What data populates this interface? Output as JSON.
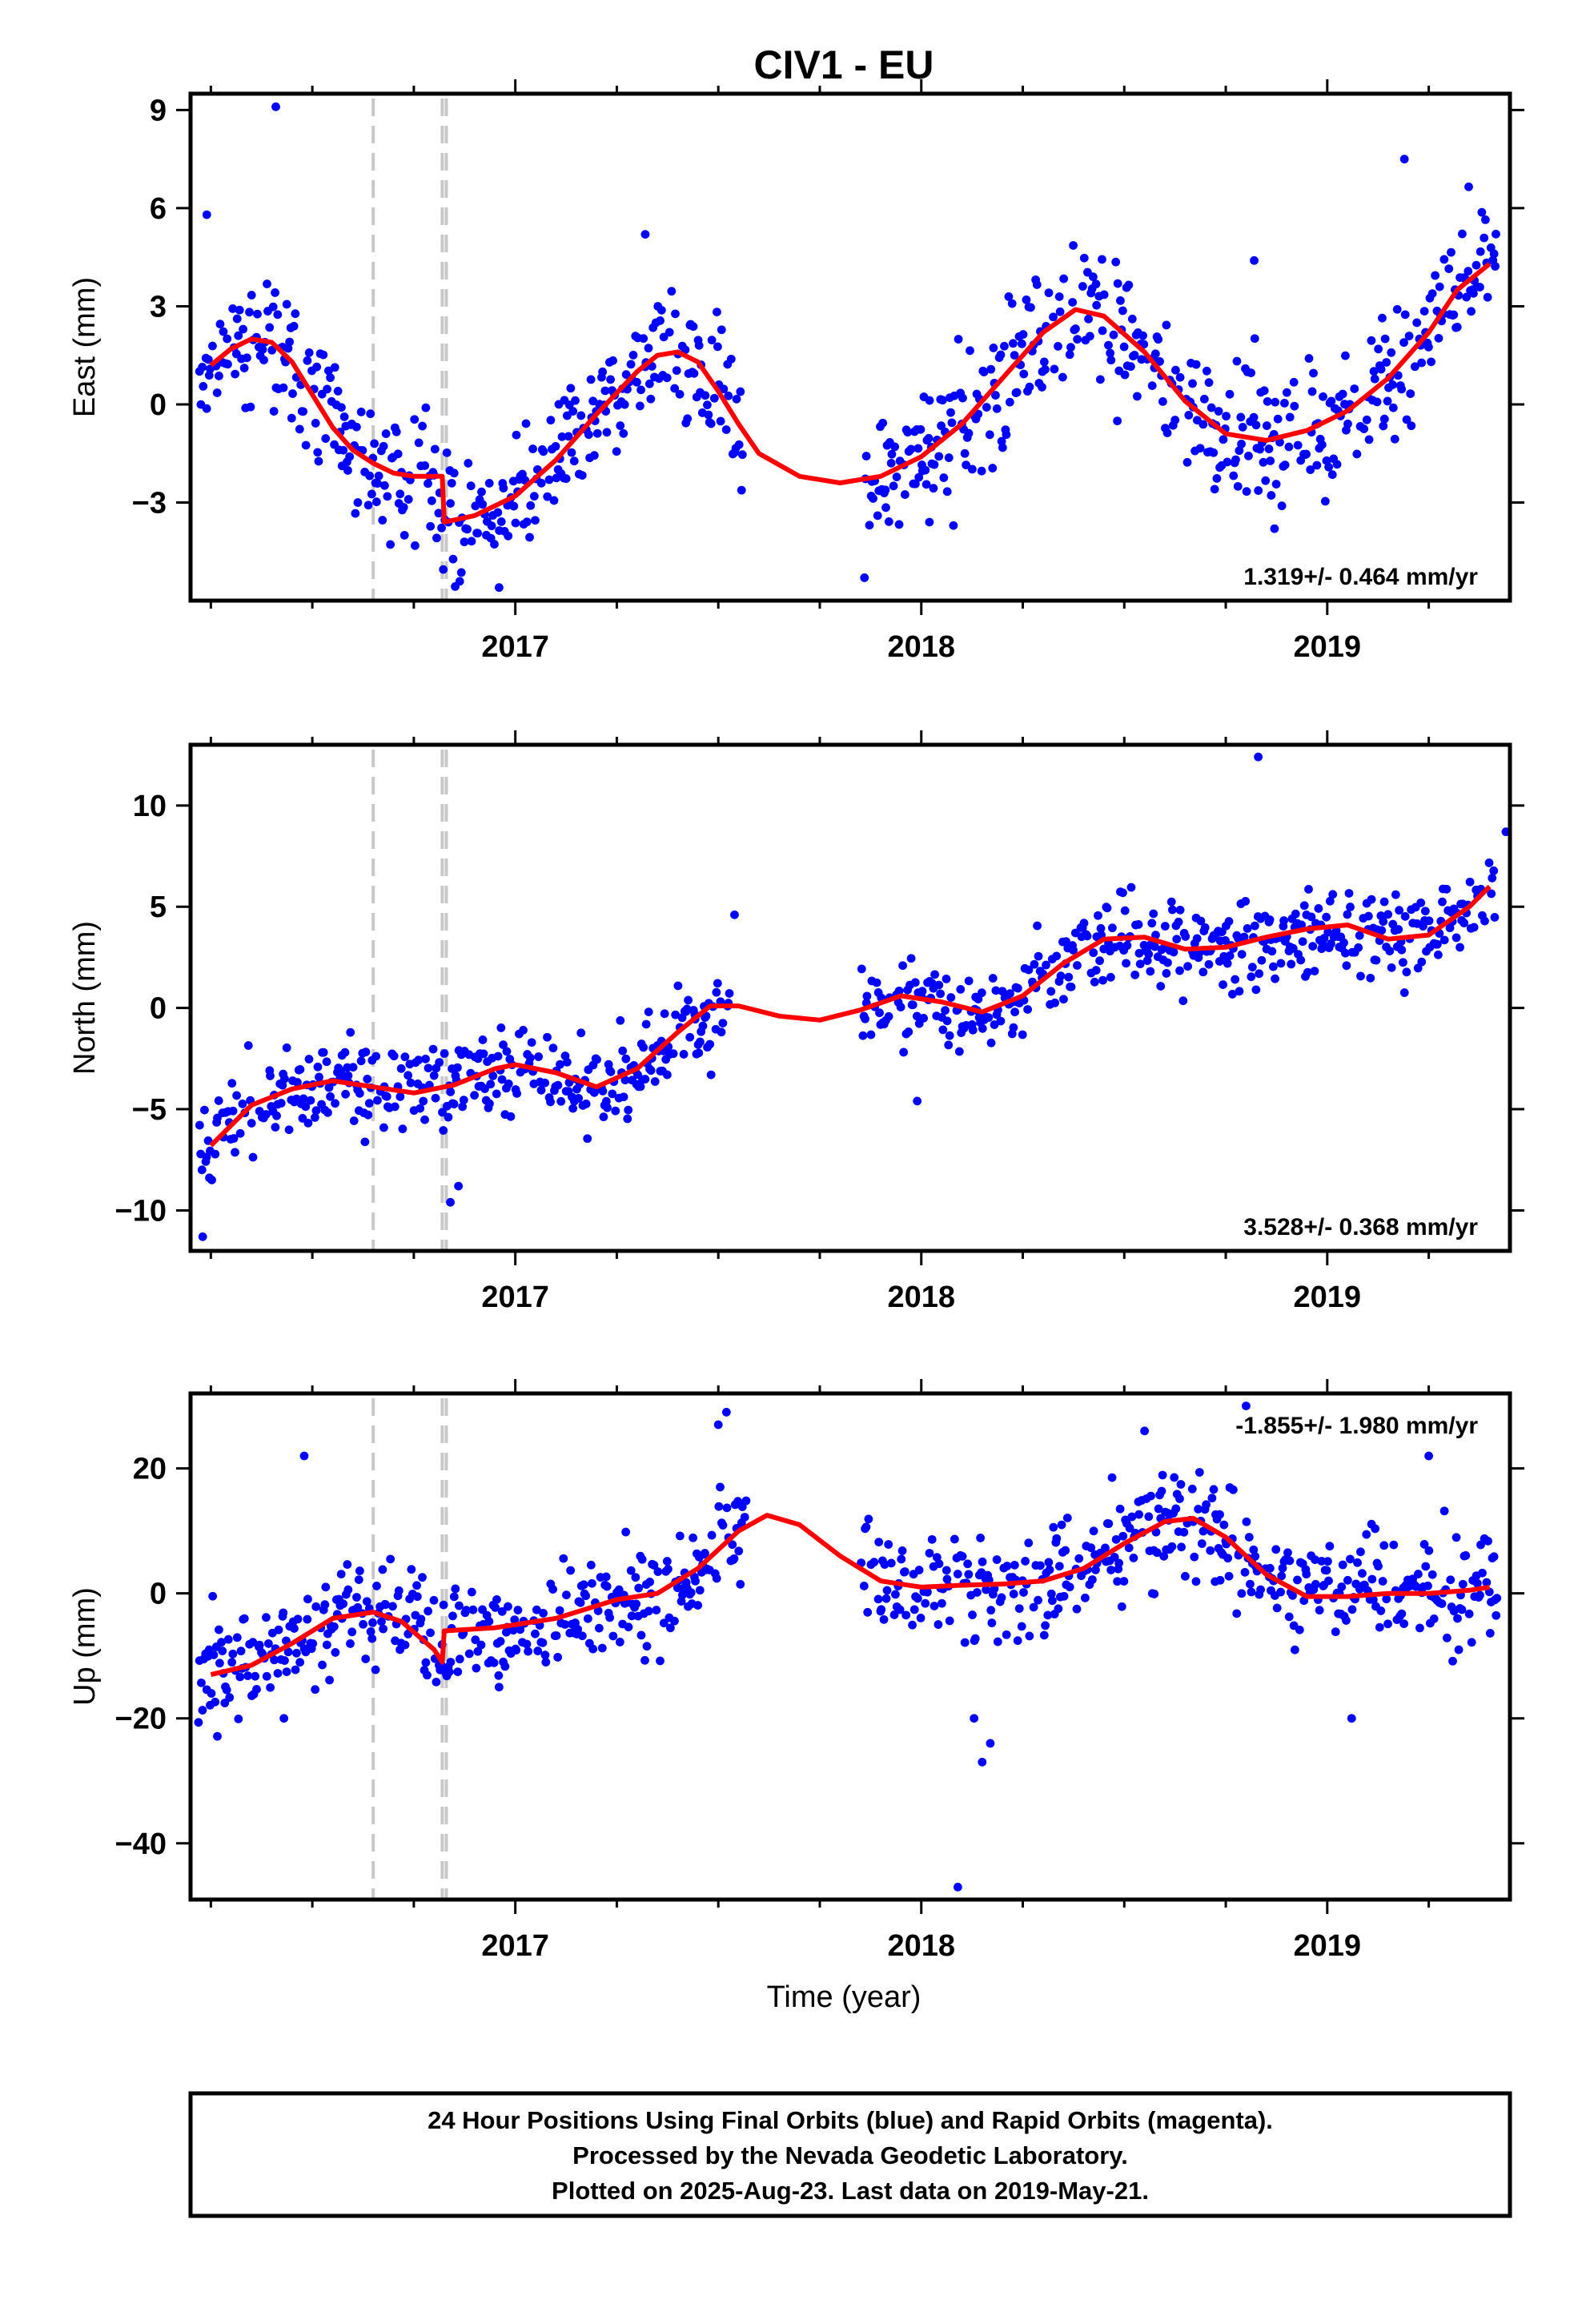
{
  "title": "CIV1 - EU",
  "xlabel": "Time (year)",
  "caption": {
    "line1": "24 Hour Positions Using Final Orbits (blue) and Rapid Orbits (magenta).",
    "line2": "Processed by the Nevada Geodetic Laboratory.",
    "line3": "Plotted on 2025-Aug-23. Last data on 2019-May-21."
  },
  "colors": {
    "points": "#0000ff",
    "fit": "#ff0000",
    "breaks": "#c8c8c8",
    "frame": "#000000"
  },
  "chart_data": [
    {
      "type": "scatter",
      "ylabel": "East (mm)",
      "xlim": [
        2016.2,
        2019.45
      ],
      "ylim": [
        -6,
        9.5
      ],
      "yticks": [
        -3,
        0,
        3,
        6,
        9
      ],
      "xticks": [
        2017,
        2018,
        2019
      ],
      "rate": "1.319+/- 0.464 mm/yr",
      "breaks": [
        2016.65,
        2016.82,
        2016.83
      ],
      "fit": [
        [
          2016.25,
          1.2
        ],
        [
          2016.3,
          1.7
        ],
        [
          2016.35,
          2.0
        ],
        [
          2016.4,
          1.9
        ],
        [
          2016.45,
          1.3
        ],
        [
          2016.5,
          0.3
        ],
        [
          2016.55,
          -0.7
        ],
        [
          2016.6,
          -1.4
        ],
        [
          2016.65,
          -1.8
        ],
        [
          2016.7,
          -2.1
        ],
        [
          2016.75,
          -2.2
        ],
        [
          2016.82,
          -2.2
        ],
        [
          2016.825,
          -3.6
        ],
        [
          2016.9,
          -3.4
        ],
        [
          2017.0,
          -2.8
        ],
        [
          2017.1,
          -1.7
        ],
        [
          2017.2,
          -0.3
        ],
        [
          2017.3,
          1.0
        ],
        [
          2017.35,
          1.5
        ],
        [
          2017.4,
          1.6
        ],
        [
          2017.45,
          1.3
        ],
        [
          2017.5,
          0.4
        ],
        [
          2017.55,
          -0.6
        ],
        [
          2017.6,
          -1.5
        ],
        [
          2017.7,
          -2.2
        ],
        [
          2017.8,
          -2.4
        ],
        [
          2017.9,
          -2.2
        ],
        [
          2018.0,
          -1.6
        ],
        [
          2018.1,
          -0.6
        ],
        [
          2018.2,
          0.8
        ],
        [
          2018.3,
          2.2
        ],
        [
          2018.38,
          2.9
        ],
        [
          2018.45,
          2.7
        ],
        [
          2018.55,
          1.6
        ],
        [
          2018.65,
          0.1
        ],
        [
          2018.75,
          -0.9
        ],
        [
          2018.85,
          -1.1
        ],
        [
          2018.95,
          -0.8
        ],
        [
          2019.05,
          -0.2
        ],
        [
          2019.15,
          0.8
        ],
        [
          2019.25,
          2.2
        ],
        [
          2019.32,
          3.5
        ],
        [
          2019.4,
          4.3
        ]
      ],
      "anchors": [
        [
          2016.22,
          1.0
        ],
        [
          2016.3,
          1.8
        ],
        [
          2016.4,
          1.8
        ],
        [
          2016.5,
          0.2
        ],
        [
          2016.6,
          -1.5
        ],
        [
          2016.7,
          -2.1
        ],
        [
          2016.8,
          -2.3
        ],
        [
          2016.85,
          -3.6
        ],
        [
          2016.95,
          -3.2
        ],
        [
          2017.05,
          -2.2
        ],
        [
          2017.15,
          -1.0
        ],
        [
          2017.25,
          0.4
        ],
        [
          2017.35,
          1.5
        ],
        [
          2017.45,
          1.2
        ],
        [
          2017.55,
          -0.7
        ],
        [
          2017.65,
          -1.8
        ],
        [
          2017.75,
          -2.4
        ],
        [
          2017.85,
          -2.4
        ],
        [
          2017.95,
          -1.9
        ],
        [
          2018.05,
          -1.1
        ],
        [
          2018.15,
          0.1
        ],
        [
          2018.25,
          1.5
        ],
        [
          2018.35,
          2.8
        ],
        [
          2018.45,
          2.7
        ],
        [
          2018.55,
          1.5
        ],
        [
          2018.65,
          0.0
        ],
        [
          2018.75,
          -0.9
        ],
        [
          2018.85,
          -1.1
        ],
        [
          2018.95,
          -0.8
        ],
        [
          2019.05,
          -0.2
        ],
        [
          2019.15,
          0.8
        ],
        [
          2019.25,
          2.3
        ],
        [
          2019.35,
          4.0
        ],
        [
          2019.42,
          5.0
        ]
      ],
      "gaps": [
        [
          2017.56,
          2017.86
        ]
      ],
      "noise": 1.0,
      "seed": 11,
      "outliers": [
        [
          2016.41,
          9.1
        ],
        [
          2016.24,
          5.8
        ],
        [
          2017.32,
          5.2
        ],
        [
          2018.82,
          4.4
        ],
        [
          2019.19,
          7.5
        ],
        [
          2017.86,
          -5.3
        ],
        [
          2016.96,
          -5.6
        ],
        [
          2018.87,
          -3.8
        ],
        [
          2018.02,
          -3.6
        ]
      ]
    },
    {
      "type": "scatter",
      "ylabel": "North (mm)",
      "xlim": [
        2016.2,
        2019.45
      ],
      "ylim": [
        -12,
        13
      ],
      "yticks": [
        -10,
        -5,
        0,
        5,
        10
      ],
      "xticks": [
        2017,
        2018,
        2019
      ],
      "rate": "3.528+/- 0.368 mm/yr",
      "breaks": [
        2016.65,
        2016.82,
        2016.83
      ],
      "fit": [
        [
          2016.25,
          -6.8
        ],
        [
          2016.3,
          -5.8
        ],
        [
          2016.35,
          -4.8
        ],
        [
          2016.45,
          -4.0
        ],
        [
          2016.55,
          -3.6
        ],
        [
          2016.65,
          -3.9
        ],
        [
          2016.75,
          -4.2
        ],
        [
          2016.85,
          -3.8
        ],
        [
          2016.95,
          -3.0
        ],
        [
          2017.0,
          -2.8
        ],
        [
          2017.1,
          -3.2
        ],
        [
          2017.2,
          -3.9
        ],
        [
          2017.3,
          -3.0
        ],
        [
          2017.4,
          -1.2
        ],
        [
          2017.48,
          0.1
        ],
        [
          2017.55,
          0.1
        ],
        [
          2017.65,
          -0.4
        ],
        [
          2017.75,
          -0.6
        ],
        [
          2017.85,
          -0.1
        ],
        [
          2017.95,
          0.6
        ],
        [
          2018.05,
          0.3
        ],
        [
          2018.15,
          -0.2
        ],
        [
          2018.25,
          0.6
        ],
        [
          2018.35,
          2.2
        ],
        [
          2018.45,
          3.4
        ],
        [
          2018.55,
          3.5
        ],
        [
          2018.65,
          2.9
        ],
        [
          2018.75,
          3.0
        ],
        [
          2018.85,
          3.5
        ],
        [
          2018.95,
          3.9
        ],
        [
          2019.05,
          4.1
        ],
        [
          2019.15,
          3.4
        ],
        [
          2019.25,
          3.6
        ],
        [
          2019.35,
          5.0
        ],
        [
          2019.4,
          6.0
        ]
      ],
      "anchors": [
        [
          2016.22,
          -7.0
        ],
        [
          2016.3,
          -5.6
        ],
        [
          2016.4,
          -4.2
        ],
        [
          2016.5,
          -3.7
        ],
        [
          2016.6,
          -3.7
        ],
        [
          2016.7,
          -4.1
        ],
        [
          2016.8,
          -4.1
        ],
        [
          2016.9,
          -3.3
        ],
        [
          2017.0,
          -2.8
        ],
        [
          2017.1,
          -3.3
        ],
        [
          2017.2,
          -3.9
        ],
        [
          2017.3,
          -3.0
        ],
        [
          2017.4,
          -1.2
        ],
        [
          2017.5,
          0.2
        ],
        [
          2017.6,
          -0.2
        ],
        [
          2017.7,
          -0.5
        ],
        [
          2017.8,
          -0.4
        ],
        [
          2017.9,
          0.2
        ],
        [
          2018.0,
          0.5
        ],
        [
          2018.1,
          0.0
        ],
        [
          2018.2,
          0.1
        ],
        [
          2018.3,
          1.5
        ],
        [
          2018.4,
          2.9
        ],
        [
          2018.5,
          3.5
        ],
        [
          2018.6,
          3.1
        ],
        [
          2018.7,
          2.9
        ],
        [
          2018.8,
          3.3
        ],
        [
          2018.9,
          3.7
        ],
        [
          2019.0,
          4.0
        ],
        [
          2019.1,
          3.7
        ],
        [
          2019.2,
          3.4
        ],
        [
          2019.3,
          4.2
        ],
        [
          2019.42,
          6.5
        ]
      ],
      "gaps": [
        [
          2017.53,
          2017.85
        ]
      ],
      "noise": 1.1,
      "seed": 23,
      "outliers": [
        [
          2018.83,
          12.4
        ],
        [
          2016.23,
          -11.3
        ],
        [
          2016.86,
          -8.8
        ],
        [
          2016.84,
          -9.6
        ],
        [
          2017.54,
          4.6
        ],
        [
          2017.99,
          -4.6
        ],
        [
          2019.44,
          8.7
        ]
      ]
    },
    {
      "type": "scatter",
      "ylabel": "Up (mm)",
      "xlim": [
        2016.2,
        2019.45
      ],
      "ylim": [
        -49,
        32
      ],
      "yticks": [
        -40,
        -20,
        0,
        20
      ],
      "xticks": [
        2017,
        2018,
        2019
      ],
      "rate": "-1.855+/- 1.980 mm/yr",
      "breaks": [
        2016.65,
        2016.82,
        2016.83
      ],
      "fit": [
        [
          2016.25,
          -13
        ],
        [
          2016.35,
          -11.5
        ],
        [
          2016.45,
          -8
        ],
        [
          2016.55,
          -4
        ],
        [
          2016.65,
          -3
        ],
        [
          2016.72,
          -4.5
        ],
        [
          2016.8,
          -9
        ],
        [
          2016.82,
          -11
        ],
        [
          2016.825,
          -6
        ],
        [
          2016.95,
          -5.5
        ],
        [
          2017.1,
          -4
        ],
        [
          2017.25,
          -1
        ],
        [
          2017.35,
          0
        ],
        [
          2017.45,
          4
        ],
        [
          2017.55,
          10
        ],
        [
          2017.62,
          12.5
        ],
        [
          2017.7,
          11
        ],
        [
          2017.8,
          6
        ],
        [
          2017.9,
          2
        ],
        [
          2018.0,
          1
        ],
        [
          2018.1,
          1.3
        ],
        [
          2018.2,
          1.5
        ],
        [
          2018.3,
          2
        ],
        [
          2018.4,
          4
        ],
        [
          2018.5,
          8
        ],
        [
          2018.6,
          11.5
        ],
        [
          2018.67,
          12
        ],
        [
          2018.75,
          9
        ],
        [
          2018.85,
          3
        ],
        [
          2018.95,
          -0.5
        ],
        [
          2019.05,
          -0.5
        ],
        [
          2019.15,
          0
        ],
        [
          2019.25,
          0
        ],
        [
          2019.35,
          0.5
        ],
        [
          2019.4,
          1
        ]
      ],
      "anchors": [
        [
          2016.22,
          -12
        ],
        [
          2016.35,
          -11
        ],
        [
          2016.45,
          -8
        ],
        [
          2016.55,
          -4
        ],
        [
          2016.65,
          -3
        ],
        [
          2016.75,
          -5
        ],
        [
          2016.8,
          -9
        ],
        [
          2016.85,
          -6
        ],
        [
          2016.95,
          -5.5
        ],
        [
          2017.1,
          -4
        ],
        [
          2017.25,
          -1
        ],
        [
          2017.35,
          0
        ],
        [
          2017.45,
          4
        ],
        [
          2017.52,
          11
        ],
        [
          2017.6,
          12
        ],
        [
          2017.7,
          11
        ],
        [
          2017.8,
          6
        ],
        [
          2017.9,
          2
        ],
        [
          2018.0,
          1
        ],
        [
          2018.1,
          1.3
        ],
        [
          2018.2,
          1.5
        ],
        [
          2018.3,
          2
        ],
        [
          2018.4,
          4
        ],
        [
          2018.5,
          8
        ],
        [
          2018.6,
          11
        ],
        [
          2018.7,
          11
        ],
        [
          2018.8,
          6
        ],
        [
          2018.9,
          2
        ],
        [
          2019.0,
          0
        ],
        [
          2019.1,
          0
        ],
        [
          2019.2,
          0
        ],
        [
          2019.3,
          1
        ],
        [
          2019.42,
          1
        ]
      ],
      "gaps": [
        [
          2017.57,
          2017.85
        ]
      ],
      "noise": 4.5,
      "seed": 37,
      "outliers": [
        [
          2016.48,
          22
        ],
        [
          2017.52,
          29
        ],
        [
          2017.5,
          27
        ],
        [
          2018.09,
          -47
        ],
        [
          2018.15,
          -27
        ],
        [
          2018.17,
          -24
        ],
        [
          2018.13,
          -20
        ],
        [
          2018.55,
          26
        ],
        [
          2018.8,
          30
        ],
        [
          2019.25,
          22
        ],
        [
          2019.06,
          -20
        ],
        [
          2016.43,
          -20
        ],
        [
          2016.96,
          -15
        ]
      ]
    }
  ]
}
